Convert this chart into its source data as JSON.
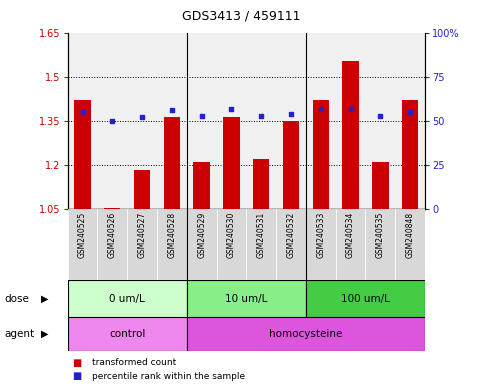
{
  "title": "GDS3413 / 459111",
  "samples": [
    "GSM240525",
    "GSM240526",
    "GSM240527",
    "GSM240528",
    "GSM240529",
    "GSM240530",
    "GSM240531",
    "GSM240532",
    "GSM240533",
    "GSM240534",
    "GSM240535",
    "GSM240848"
  ],
  "transformed_count": [
    1.42,
    1.055,
    1.185,
    1.365,
    1.21,
    1.365,
    1.22,
    1.35,
    1.42,
    1.555,
    1.21,
    1.42
  ],
  "percentile_rank": [
    55,
    50,
    52,
    56,
    53,
    57,
    53,
    54,
    57,
    57,
    53,
    55
  ],
  "bar_color": "#cc0000",
  "dot_color": "#2222cc",
  "ylim_left": [
    1.05,
    1.65
  ],
  "ylim_right": [
    0,
    100
  ],
  "yticks_left": [
    1.05,
    1.2,
    1.35,
    1.5,
    1.65
  ],
  "yticks_left_labels": [
    "1.05",
    "1.2",
    "1.35",
    "1.5",
    "1.65"
  ],
  "yticks_right": [
    0,
    25,
    50,
    75,
    100
  ],
  "yticks_right_labels": [
    "0",
    "25",
    "50",
    "75",
    "100%"
  ],
  "hgrid_values": [
    1.2,
    1.35,
    1.5
  ],
  "dose_groups": [
    {
      "label": "0 um/L",
      "start": 0,
      "end": 4,
      "color": "#ccffcc"
    },
    {
      "label": "10 um/L",
      "start": 4,
      "end": 8,
      "color": "#88ee88"
    },
    {
      "label": "100 um/L",
      "start": 8,
      "end": 12,
      "color": "#44cc44"
    }
  ],
  "agent_groups": [
    {
      "label": "control",
      "start": 0,
      "end": 4,
      "color": "#ee88ee"
    },
    {
      "label": "homocysteine",
      "start": 4,
      "end": 12,
      "color": "#dd55dd"
    }
  ],
  "dose_label": "dose",
  "agent_label": "agent",
  "legend_items": [
    {
      "color": "#cc0000",
      "label": "transformed count"
    },
    {
      "color": "#2222cc",
      "label": "percentile rank within the sample"
    }
  ],
  "plot_bg_color": "#f0f0f0",
  "sample_bg_color": "#d8d8d8",
  "bar_width": 0.55,
  "base_value": 1.05,
  "group_dividers": [
    3.5,
    7.5
  ]
}
